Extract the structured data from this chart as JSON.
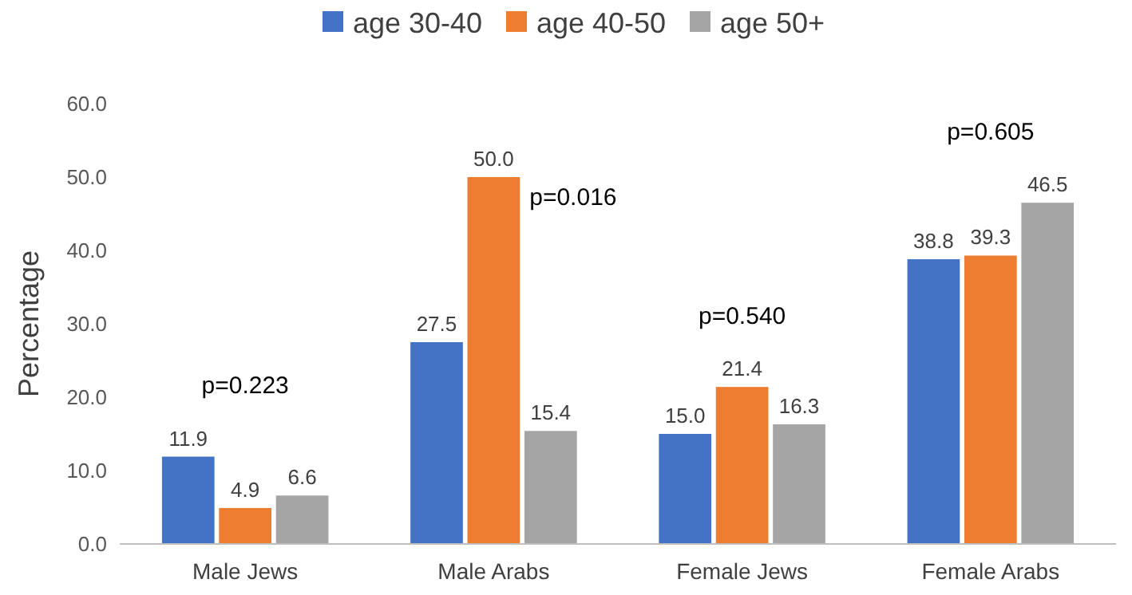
{
  "chart_data": {
    "type": "bar",
    "ylabel": "Percentage",
    "categories": [
      "Male Jews",
      "Male Arabs",
      "Female Jews",
      "Female Arabs"
    ],
    "series": [
      {
        "name": "age 30-40",
        "color": "#4472c4",
        "values": [
          11.9,
          27.5,
          15.0,
          38.8
        ],
        "value_labels": [
          "11.9",
          "27.5",
          "15.0",
          "38.8"
        ]
      },
      {
        "name": "age 40-50",
        "color": "#ed7d31",
        "values": [
          4.9,
          50.0,
          21.4,
          39.3
        ],
        "value_labels": [
          "4.9",
          "50.0",
          "21.4",
          "39.3"
        ]
      },
      {
        "name": "age 50+",
        "color": "#a5a5a5",
        "values": [
          6.6,
          15.4,
          16.3,
          46.5
        ],
        "value_labels": [
          "6.6",
          "15.4",
          "16.3",
          "46.5"
        ]
      }
    ],
    "ylim": [
      0,
      60
    ],
    "yticks": [
      {
        "value": 0,
        "label": "0.0"
      },
      {
        "value": 10,
        "label": "10.0"
      },
      {
        "value": 20,
        "label": "20.0"
      },
      {
        "value": 30,
        "label": "30.0"
      },
      {
        "value": 40,
        "label": "40.0"
      },
      {
        "value": 50,
        "label": "50.0"
      },
      {
        "value": 60,
        "label": "60.0"
      }
    ],
    "grid": false,
    "legend": "top",
    "annotations": [
      "p=0.223",
      "p=0.016",
      "p=0.540",
      "p=0.605"
    ]
  }
}
